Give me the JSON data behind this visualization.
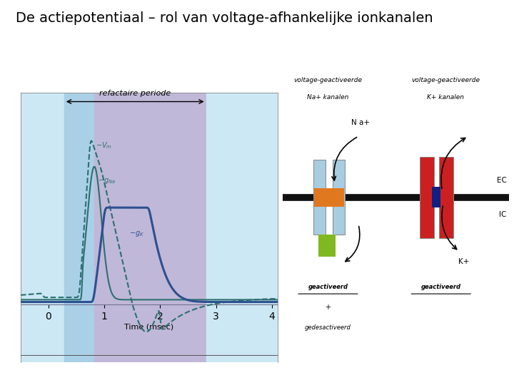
{
  "title": "De actiepotentiaal – rol van voltage-afhankelijke ionkanalen",
  "title_fontsize": 14,
  "bg_color": "#ffffff",
  "refractaire_label": "refactaire periode",
  "time_label": "Time (msec)",
  "na_label": "N a+",
  "k_label": "K+",
  "ec_label": "EC",
  "ic_label": "IC",
  "na_channel_label1": "voltage-geactiveerde",
  "na_channel_label2": "Na+ kanalen",
  "k_channel_label1": "voltage-geactiveerde",
  "k_channel_label2": "K+ kanalen",
  "na_state_label1": "geactiveerd",
  "na_state_label2": "+ gedesactiveerd",
  "k_state_label": "geactiveerd",
  "zone1_color": "#cce8f0",
  "zone2_color": "#b8d0e8",
  "zone3_color": "#c0b8d8",
  "zone4_color": "#cce8f0",
  "light_blue": "#a8cce0",
  "orange_color": "#e07820",
  "green_color": "#80b820",
  "red_color": "#cc2020",
  "dark_blue": "#102080",
  "membrane_color": "#111111",
  "curve_color_vm": "#2c7070",
  "curve_color_gna": "#2c7070",
  "curve_color_gk": "#2c5090"
}
